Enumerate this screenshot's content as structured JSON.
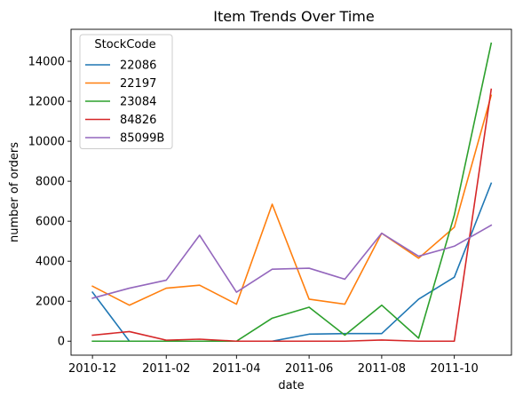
{
  "chart_data": {
    "type": "line",
    "title": "Item Trends Over Time",
    "xlabel": "date",
    "ylabel": "number of orders",
    "x": [
      "2010-12",
      "2011-01",
      "2011-02",
      "2011-03",
      "2011-04",
      "2011-05",
      "2011-06",
      "2011-07",
      "2011-08",
      "2011-09",
      "2011-10",
      "2011-11"
    ],
    "x_ticks": [
      "2010-12",
      "2011-02",
      "2011-04",
      "2011-06",
      "2011-08",
      "2011-10"
    ],
    "y_ticks": [
      0,
      2000,
      4000,
      6000,
      8000,
      10000,
      12000,
      14000
    ],
    "ylim": [
      -700,
      15600
    ],
    "xlim": [
      "2010-11-13",
      "2011-11-18"
    ],
    "legend": {
      "title": "StockCode",
      "position": "upper-left"
    },
    "series": [
      {
        "name": "22086",
        "color": "#1f77b4",
        "values": [
          2450,
          0,
          0,
          0,
          0,
          0,
          350,
          380,
          380,
          2100,
          3200,
          7900
        ]
      },
      {
        "name": "22197",
        "color": "#ff7f0e",
        "values": [
          2750,
          1800,
          2650,
          2800,
          1850,
          6850,
          2100,
          1850,
          5400,
          4150,
          5700,
          12300
        ]
      },
      {
        "name": "23084",
        "color": "#2ca02c",
        "values": [
          0,
          0,
          0,
          0,
          0,
          1150,
          1700,
          300,
          1800,
          150,
          6300,
          14900
        ]
      },
      {
        "name": "84826",
        "color": "#d62728",
        "values": [
          300,
          480,
          50,
          100,
          0,
          0,
          0,
          0,
          60,
          0,
          0,
          12600
        ]
      },
      {
        "name": "85099B",
        "color": "#9467bd",
        "values": [
          2150,
          2650,
          3050,
          5300,
          2450,
          3600,
          3650,
          3100,
          5400,
          4250,
          4750,
          5800
        ]
      }
    ]
  }
}
